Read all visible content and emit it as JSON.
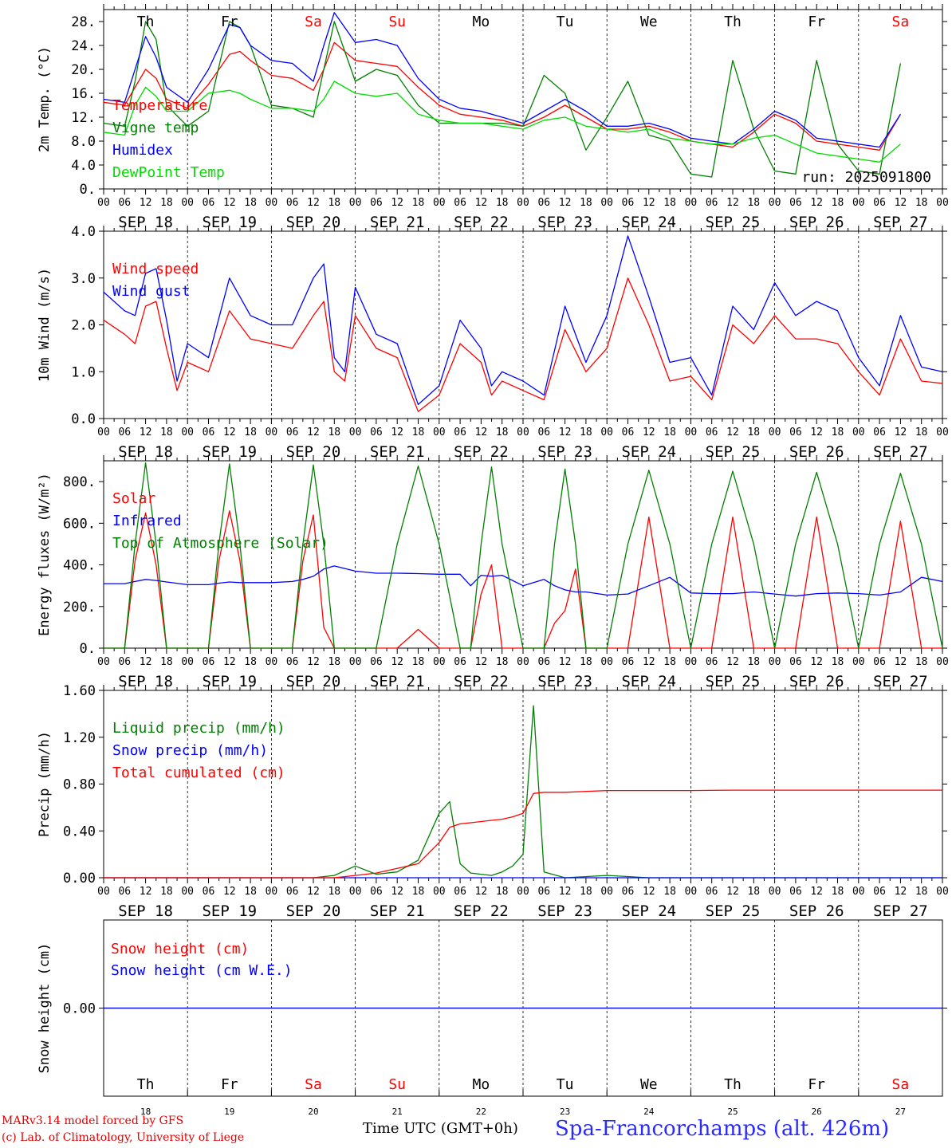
{
  "station": "Spa-Francorchamps (alt. 426m)",
  "credits": [
    "MARv3.14 model forced by GFS",
    "(c) Lab. of Climatology, University of Liege"
  ],
  "x_title": "Time UTC (GMT+0h)",
  "run_label": "run: 2025091800",
  "days": [
    "Th",
    "Fr",
    "Sa",
    "Su",
    "Mo",
    "Tu",
    "We",
    "Th",
    "Fr",
    "Sa"
  ],
  "weekend_days": [
    2,
    3,
    9
  ],
  "dates": [
    "SEP 18",
    "SEP 19",
    "SEP 20",
    "SEP 21",
    "SEP 22",
    "SEP 23",
    "SEP 24",
    "SEP 25",
    "SEP 26",
    "SEP 27"
  ],
  "day_numbers": [
    "18",
    "19",
    "20",
    "21",
    "22",
    "23",
    "24",
    "25",
    "26",
    "27"
  ],
  "hour_labels": [
    "00",
    "06",
    "12",
    "18"
  ],
  "last_hour_label": "00",
  "colors": {
    "red": "#ff0000",
    "green": "#008000",
    "blue": "#0000ff",
    "lightgreen": "#00dd00",
    "weekend": "#ff0000",
    "station": "#2a2aff"
  },
  "chart_data": [
    {
      "type": "line",
      "ylabel": "2m Temp. (°C)",
      "ylim": [
        0,
        30
      ],
      "yticks": [
        "0.",
        "4.0",
        "8.0",
        "12.",
        "16.",
        "20.",
        "24.",
        "28."
      ],
      "ytick_values": [
        0,
        4,
        8,
        12,
        16,
        20,
        24,
        28
      ],
      "zero_line_dashed": true,
      "x_hours": [
        0,
        6,
        9,
        12,
        15,
        18,
        24,
        30,
        36,
        39,
        42,
        48,
        54,
        60,
        63,
        66,
        72,
        78,
        84,
        90,
        96,
        102,
        108,
        114,
        120,
        126,
        132,
        138,
        144,
        150,
        156,
        162,
        168,
        174,
        180,
        186,
        192,
        198,
        204,
        210,
        216,
        222,
        228
      ],
      "series": [
        {
          "name": "Temperature",
          "color": "red",
          "values": [
            14.5,
            14,
            17,
            20,
            18.5,
            15,
            13.5,
            17.5,
            22.5,
            23,
            21.5,
            19,
            18.5,
            16.5,
            20,
            24.5,
            21.5,
            21,
            20.5,
            17,
            14,
            12.5,
            12,
            11.5,
            10.5,
            12,
            14,
            12,
            10,
            10,
            10.5,
            9.5,
            8,
            7.5,
            7,
            9.5,
            12.5,
            11,
            8,
            7.5,
            7,
            6.5,
            12.5
          ]
        },
        {
          "name": "Vigne temp",
          "color": "green",
          "values": [
            11,
            10.5,
            18,
            28,
            25,
            14,
            10.5,
            13,
            28,
            27,
            24,
            14,
            13.5,
            12,
            20,
            28,
            18,
            20,
            19,
            14,
            11,
            11,
            11,
            11,
            10.5,
            19,
            16,
            6.5,
            12,
            18,
            9,
            8,
            2.5,
            2,
            21.5,
            10,
            3,
            2.5,
            21.5,
            7.5,
            3,
            2.5,
            21
          ]
        },
        {
          "name": "Humidex",
          "color": "blue",
          "values": [
            15,
            14.5,
            20,
            25.5,
            22,
            17,
            14.5,
            20,
            27.5,
            27,
            24,
            21.5,
            21,
            18,
            24,
            29.5,
            24.5,
            25,
            24,
            18.5,
            15,
            13.5,
            13,
            12,
            11,
            13,
            15,
            13,
            10.5,
            10.5,
            11,
            10,
            8.5,
            8,
            7.5,
            10,
            13,
            11.5,
            8.5,
            8,
            7.5,
            7,
            12.5
          ]
        },
        {
          "name": "DewPoint Temp",
          "color": "lightgreen",
          "values": [
            9.5,
            9,
            14,
            17,
            15.5,
            13,
            13,
            16,
            16.5,
            16,
            15,
            13.5,
            13.5,
            13,
            15,
            18,
            16,
            15.5,
            16,
            12.5,
            11.5,
            11,
            11,
            10.5,
            10,
            11.5,
            12,
            10.5,
            10,
            9.5,
            10,
            8.5,
            8,
            7.5,
            7.5,
            8.5,
            9,
            7.5,
            6,
            5.5,
            5,
            4.5,
            7.5
          ]
        }
      ]
    },
    {
      "type": "line",
      "ylabel": "10m Wind (m/s)",
      "ylim": [
        0,
        4
      ],
      "yticks": [
        "0.0",
        "1.0",
        "2.0",
        "3.0",
        "4.0"
      ],
      "ytick_values": [
        0,
        1,
        2,
        3,
        4
      ],
      "x_hours": [
        0,
        6,
        9,
        12,
        15,
        18,
        21,
        24,
        30,
        36,
        42,
        48,
        54,
        60,
        63,
        66,
        69,
        72,
        78,
        84,
        90,
        96,
        102,
        108,
        111,
        114,
        120,
        126,
        132,
        138,
        144,
        150,
        156,
        162,
        168,
        174,
        180,
        186,
        192,
        198,
        204,
        210,
        216,
        222,
        228,
        234,
        240
      ],
      "series": [
        {
          "name": "Wind speed",
          "color": "red",
          "values": [
            2.1,
            1.8,
            1.6,
            2.4,
            2.5,
            1.5,
            0.6,
            1.2,
            1.0,
            2.3,
            1.7,
            1.6,
            1.5,
            2.2,
            2.5,
            1.0,
            0.8,
            2.2,
            1.5,
            1.3,
            0.15,
            0.5,
            1.6,
            1.2,
            0.5,
            0.8,
            0.6,
            0.4,
            1.9,
            1.0,
            1.5,
            3.0,
            2.0,
            0.8,
            0.9,
            0.4,
            2.0,
            1.6,
            2.2,
            1.7,
            1.7,
            1.6,
            1.0,
            0.5,
            1.7,
            0.8,
            0.75
          ]
        },
        {
          "name": "Wind gust",
          "color": "blue",
          "values": [
            2.7,
            2.3,
            2.2,
            3.1,
            3.2,
            2.1,
            0.8,
            1.6,
            1.3,
            3.0,
            2.2,
            2.0,
            2.0,
            3.0,
            3.3,
            1.3,
            1.0,
            2.8,
            1.8,
            1.6,
            0.3,
            0.7,
            2.1,
            1.5,
            0.7,
            1.0,
            0.8,
            0.5,
            2.4,
            1.2,
            2.2,
            3.9,
            2.6,
            1.2,
            1.3,
            0.5,
            2.4,
            1.9,
            2.9,
            2.2,
            2.5,
            2.3,
            1.3,
            0.7,
            2.2,
            1.1,
            1.0
          ]
        }
      ]
    },
    {
      "type": "line",
      "ylabel": "Energy fluxes (W/m²)",
      "ylim": [
        0,
        900
      ],
      "yticks": [
        "0.",
        "200.",
        "400.",
        "600.",
        "800."
      ],
      "ytick_values": [
        0,
        200,
        400,
        600,
        800
      ],
      "x_hours": [
        0,
        6,
        9,
        12,
        15,
        18,
        24,
        30,
        33,
        36,
        39,
        42,
        48,
        54,
        57,
        60,
        63,
        66,
        72,
        78,
        84,
        90,
        96,
        102,
        105,
        108,
        111,
        114,
        120,
        126,
        129,
        132,
        135,
        138,
        144,
        150,
        156,
        162,
        168,
        174,
        180,
        186,
        192,
        198,
        204,
        210,
        216,
        222,
        228,
        234,
        240
      ],
      "series": [
        {
          "name": "Solar",
          "color": "red",
          "values": [
            0,
            0,
            420,
            650,
            400,
            0,
            0,
            0,
            420,
            660,
            420,
            0,
            0,
            0,
            420,
            640,
            100,
            0,
            0,
            0,
            0,
            90,
            0,
            0,
            0,
            260,
            400,
            0,
            0,
            0,
            120,
            180,
            380,
            0,
            0,
            0,
            630,
            0,
            0,
            0,
            630,
            0,
            0,
            0,
            630,
            0,
            0,
            0,
            610,
            0,
            0
          ]
        },
        {
          "name": "Infrared",
          "color": "blue",
          "values": [
            310,
            310,
            320,
            330,
            325,
            318,
            305,
            305,
            312,
            318,
            315,
            315,
            315,
            320,
            330,
            345,
            380,
            395,
            370,
            360,
            360,
            358,
            355,
            355,
            300,
            350,
            345,
            350,
            300,
            330,
            300,
            280,
            270,
            270,
            255,
            260,
            300,
            340,
            265,
            262,
            262,
            270,
            260,
            250,
            262,
            265,
            262,
            255,
            270,
            340,
            320
          ]
        },
        {
          "name": "Top of Atmosphere (Solar)",
          "color": "green",
          "values": [
            0,
            0,
            500,
            890,
            500,
            0,
            0,
            0,
            500,
            885,
            500,
            0,
            0,
            0,
            500,
            880,
            500,
            0,
            0,
            0,
            500,
            875,
            500,
            0,
            0,
            500,
            870,
            500,
            0,
            0,
            500,
            860,
            500,
            0,
            0,
            500,
            855,
            500,
            0,
            500,
            850,
            500,
            0,
            500,
            845,
            500,
            0,
            500,
            840,
            500,
            0
          ]
        }
      ]
    },
    {
      "type": "line",
      "ylabel": "Precip (mm/h)",
      "ylim": [
        0,
        1.6
      ],
      "yticks": [
        "0.00",
        "0.40",
        "0.80",
        "1.20",
        "1.60"
      ],
      "ytick_values": [
        0,
        0.4,
        0.8,
        1.2,
        1.6
      ],
      "x_hours": [
        0,
        60,
        66,
        72,
        78,
        84,
        90,
        96,
        99,
        102,
        105,
        108,
        111,
        114,
        117,
        120,
        123,
        126,
        132,
        144,
        156,
        168,
        180,
        204,
        240
      ],
      "series": [
        {
          "name": "Liquid precip (mm/h)",
          "color": "green",
          "values": [
            0,
            0,
            0.02,
            0.1,
            0.03,
            0.05,
            0.15,
            0.55,
            0.65,
            0.12,
            0.04,
            0.03,
            0.02,
            0.05,
            0.1,
            0.2,
            1.47,
            0.05,
            0,
            0.02,
            0,
            0,
            0,
            0,
            0
          ]
        },
        {
          "name": "Snow precip (mm/h)",
          "color": "blue",
          "values": [
            0,
            0,
            0,
            0,
            0,
            0,
            0,
            0,
            0,
            0,
            0,
            0,
            0,
            0,
            0,
            0,
            0,
            0,
            0,
            0,
            0,
            0,
            0,
            0,
            0
          ]
        },
        {
          "name": "Total cumulated (cm)",
          "color": "red",
          "values": [
            0,
            0,
            0,
            0.02,
            0.04,
            0.08,
            0.12,
            0.3,
            0.43,
            0.46,
            0.47,
            0.48,
            0.49,
            0.5,
            0.52,
            0.55,
            0.72,
            0.73,
            0.73,
            0.745,
            0.745,
            0.745,
            0.748,
            0.748,
            0.748
          ]
        }
      ]
    },
    {
      "type": "line",
      "ylabel": "Snow height (cm)",
      "ylim": [
        -1,
        1
      ],
      "yticks": [
        "0.00"
      ],
      "ytick_values": [
        0
      ],
      "x_hours": [
        0,
        240
      ],
      "series": [
        {
          "name": "Snow height (cm)",
          "color": "red",
          "values": [
            0,
            0
          ]
        },
        {
          "name": "Snow height (cm W.E.)",
          "color": "blue",
          "values": [
            0,
            0
          ]
        }
      ]
    }
  ]
}
